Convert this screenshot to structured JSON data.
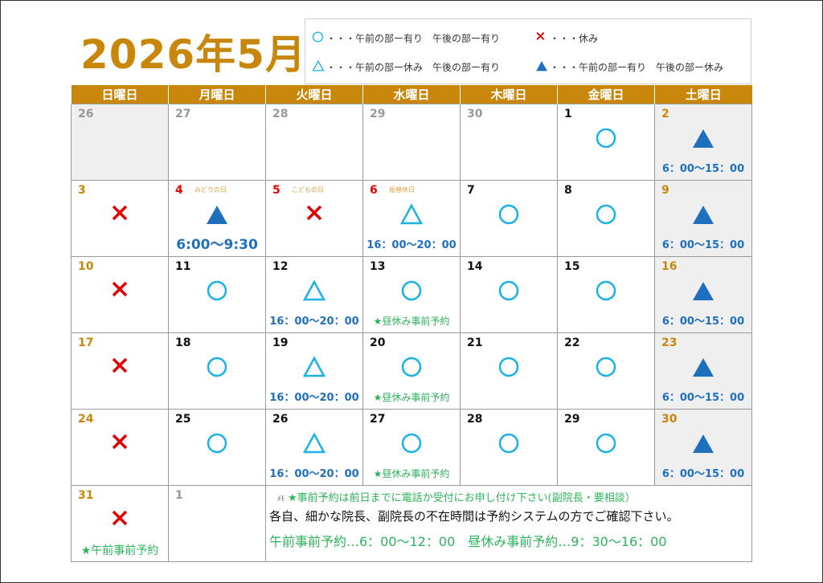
{
  "title": "2026年5月",
  "legend": [
    {
      "mark": "circle",
      "text": "・・・午前の部ー有り　午後の部ー有り"
    },
    {
      "mark": "cross",
      "text": "・・・休み"
    },
    {
      "mark": "triangle",
      "text": "・・・午前の部ー休み　午後の部ー有り"
    },
    {
      "mark": "triangle-filled",
      "text": "・・・午前の部ー有り　午後の部ー休み"
    }
  ],
  "weekdays": [
    "日曜日",
    "月曜日",
    "火曜日",
    "水曜日",
    "木曜日",
    "金曜日",
    "土曜日"
  ],
  "colors": {
    "accent": "#c8860a",
    "circle": "#1ab0e8",
    "triangle_filled": "#1f6fbf",
    "cross": "#e00000",
    "note": "#2cb35a"
  },
  "weeks": [
    [
      {
        "day": "26",
        "c": "prev",
        "gray": true
      },
      {
        "day": "27",
        "c": "prev"
      },
      {
        "day": "28",
        "c": "prev"
      },
      {
        "day": "29",
        "c": "prev"
      },
      {
        "day": "30",
        "c": "prev"
      },
      {
        "day": "1",
        "c": "wk",
        "mark": "circle"
      },
      {
        "day": "2",
        "c": "we",
        "gray": true,
        "mark": "triangle-filled",
        "time": "6：00～15：00"
      }
    ],
    [
      {
        "day": "3",
        "c": "we",
        "mark": "cross"
      },
      {
        "day": "4",
        "c": "hol",
        "holiday": "みどりの日",
        "mark": "triangle-filled",
        "time": "6:00～9:30",
        "big": true
      },
      {
        "day": "5",
        "c": "hol",
        "holiday": "こどもの日",
        "mark": "cross"
      },
      {
        "day": "6",
        "c": "hol",
        "holiday": "振替休日",
        "mark": "triangle",
        "time": "16：00～20：00"
      },
      {
        "day": "7",
        "c": "wk",
        "mark": "circle"
      },
      {
        "day": "8",
        "c": "wk",
        "mark": "circle"
      },
      {
        "day": "9",
        "c": "we",
        "gray": true,
        "mark": "triangle-filled",
        "time": "6：00～15：00"
      }
    ],
    [
      {
        "day": "10",
        "c": "we",
        "mark": "cross"
      },
      {
        "day": "11",
        "c": "wk",
        "mark": "circle"
      },
      {
        "day": "12",
        "c": "wk",
        "mark": "triangle",
        "time": "16：00～20：00"
      },
      {
        "day": "13",
        "c": "wk",
        "mark": "circle",
        "note": "★昼休み事前予約"
      },
      {
        "day": "14",
        "c": "wk",
        "mark": "circle"
      },
      {
        "day": "15",
        "c": "wk",
        "mark": "circle"
      },
      {
        "day": "16",
        "c": "we",
        "gray": true,
        "mark": "triangle-filled",
        "time": "6：00～15：00"
      }
    ],
    [
      {
        "day": "17",
        "c": "we",
        "mark": "cross"
      },
      {
        "day": "18",
        "c": "wk",
        "mark": "circle"
      },
      {
        "day": "19",
        "c": "wk",
        "mark": "triangle",
        "time": "16：00～20：00"
      },
      {
        "day": "20",
        "c": "wk",
        "mark": "circle",
        "note": "★昼休み事前予約"
      },
      {
        "day": "21",
        "c": "wk",
        "mark": "circle"
      },
      {
        "day": "22",
        "c": "wk",
        "mark": "circle"
      },
      {
        "day": "23",
        "c": "we",
        "gray": true,
        "mark": "triangle-filled",
        "time": "6：00～15：00"
      }
    ],
    [
      {
        "day": "24",
        "c": "we",
        "mark": "cross"
      },
      {
        "day": "25",
        "c": "wk",
        "mark": "circle"
      },
      {
        "day": "26",
        "c": "wk",
        "mark": "triangle",
        "time": "16：00～20：00"
      },
      {
        "day": "27",
        "c": "wk",
        "mark": "circle",
        "note": "★昼休み事前予約"
      },
      {
        "day": "28",
        "c": "wk",
        "mark": "circle"
      },
      {
        "day": "29",
        "c": "wk",
        "mark": "circle"
      },
      {
        "day": "30",
        "c": "we",
        "gray": true,
        "mark": "triangle-filled",
        "time": "6：00～15：00"
      }
    ]
  ],
  "last_week": [
    {
      "day": "31",
      "c": "we",
      "mark": "cross",
      "note": "★午前事前予約",
      "bignote": true
    },
    {
      "day": "1",
      "c": "prev"
    }
  ],
  "memo": {
    "label": "ﾒﾓ",
    "line1": "★事前予約は前日までに電話か受付にお申し付け下さい(副院長・要相談）",
    "line2": "各自、細かな院長、副院長の不在時間は予約システムの方でご確認下さい。",
    "line3": "午前事前予約…6：00～12：00　昼休み事前予約…9：30～16：00"
  }
}
